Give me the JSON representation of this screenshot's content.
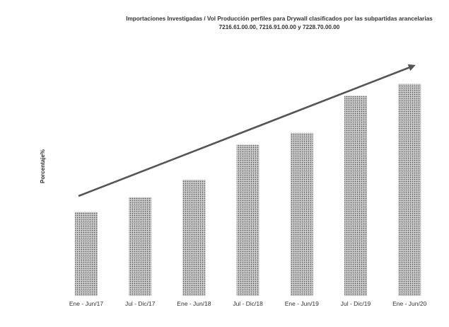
{
  "chart_data": {
    "type": "bar",
    "title": "Importaciones Investigadas / Vol Producción perfiles para Drywall clasificados por las subpartidas arancelarias",
    "subtitle": "7216.61.00.00, 7216.91.00.00 y 7228.70.00.00",
    "xlabel": "",
    "ylabel": "Porcentaje%",
    "categories": [
      "Ene - Jun/17",
      "Jul - Dic/17",
      "Ene - Jun/18",
      "Jul - Dic/18",
      "Ene - Jun/19",
      "Jul - Dic/19",
      "Ene - Jun/20"
    ],
    "values": [
      120,
      141,
      166,
      216,
      233,
      286,
      303
    ],
    "ylim": [
      0,
      330
    ],
    "grid": false,
    "legend": "none",
    "trend_arrow": true,
    "colors": {
      "bar_fill": "#cfcfcf",
      "bar_dots": "#5a5a5a",
      "arrow": "#555555",
      "text": "#333333"
    }
  }
}
